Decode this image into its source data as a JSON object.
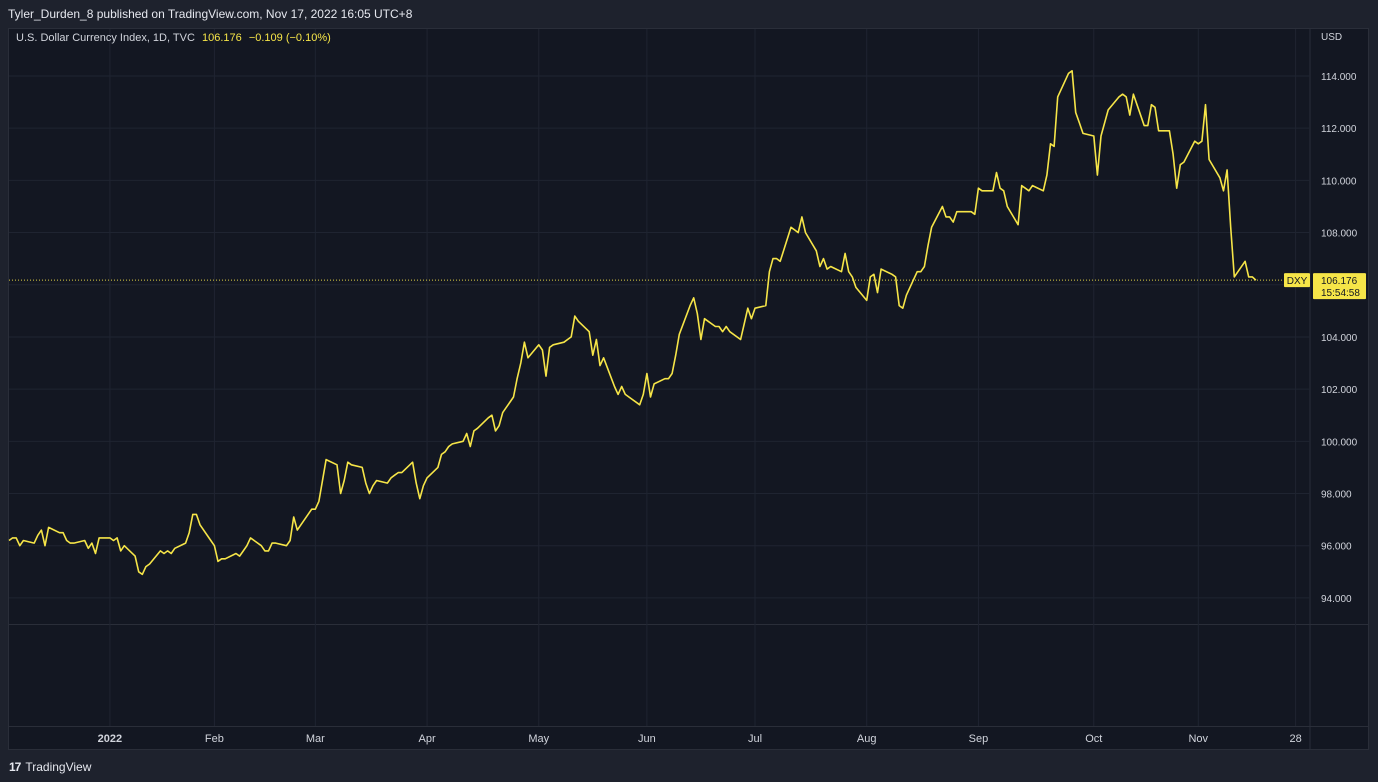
{
  "header": {
    "publish_line": "Tyler_Durden_8 published on TradingView.com, Nov 17, 2022 16:05 UTC+8"
  },
  "legend": {
    "symbol_text": "U.S. Dollar Currency Index, 1D, TVC",
    "last": "106.176",
    "change": "−0.109 (−0.10%)"
  },
  "footer": {
    "brand": "TradingView",
    "logo_glyph": "17"
  },
  "colors": {
    "line": "#f6e548",
    "grid": "#1f2431",
    "axis_text": "#d1d4dc",
    "tag_bg": "#f6e548",
    "tag_text": "#131722"
  },
  "chart_data": {
    "type": "line",
    "currency_label": "USD",
    "ylim": [
      93.0,
      115.8
    ],
    "y_ticks": [
      "94.000",
      "96.000",
      "98.000",
      "100.000",
      "102.000",
      "104.000",
      "106.000",
      "108.000",
      "110.000",
      "112.000",
      "114.000"
    ],
    "x_ticks": [
      {
        "label": "2022",
        "date": "2022-01-03",
        "bold": true
      },
      {
        "label": "Feb",
        "date": "2022-02-01"
      },
      {
        "label": "Mar",
        "date": "2022-03-01"
      },
      {
        "label": "Apr",
        "date": "2022-04-01"
      },
      {
        "label": "May",
        "date": "2022-05-02"
      },
      {
        "label": "Jun",
        "date": "2022-06-01"
      },
      {
        "label": "Jul",
        "date": "2022-07-01"
      },
      {
        "label": "Aug",
        "date": "2022-08-01"
      },
      {
        "label": "Sep",
        "date": "2022-09-01"
      },
      {
        "label": "Oct",
        "date": "2022-10-03"
      },
      {
        "label": "Nov",
        "date": "2022-11-01"
      },
      {
        "label": "28",
        "date": "2022-11-28"
      }
    ],
    "xlim": [
      "2021-12-06",
      "2022-12-02"
    ],
    "last_value": 106.176,
    "last_tag": {
      "symbol": "DXY",
      "value": "106.176",
      "countdown": "15:54:58"
    },
    "series": [
      {
        "points": [
          [
            "2021-12-06",
            96.2
          ],
          [
            "2021-12-07",
            96.3
          ],
          [
            "2021-12-08",
            96.3
          ],
          [
            "2021-12-09",
            96.0
          ],
          [
            "2021-12-10",
            96.2
          ],
          [
            "2021-12-13",
            96.1
          ],
          [
            "2021-12-14",
            96.4
          ],
          [
            "2021-12-15",
            96.6
          ],
          [
            "2021-12-16",
            96.0
          ],
          [
            "2021-12-17",
            96.7
          ],
          [
            "2021-12-20",
            96.5
          ],
          [
            "2021-12-21",
            96.5
          ],
          [
            "2021-12-22",
            96.2
          ],
          [
            "2021-12-23",
            96.1
          ],
          [
            "2021-12-24",
            96.1
          ],
          [
            "2021-12-27",
            96.2
          ],
          [
            "2021-12-28",
            95.9
          ],
          [
            "2021-12-29",
            96.1
          ],
          [
            "2021-12-30",
            95.7
          ],
          [
            "2021-12-31",
            96.3
          ],
          [
            "2022-01-03",
            96.3
          ],
          [
            "2022-01-04",
            96.2
          ],
          [
            "2022-01-05",
            96.3
          ],
          [
            "2022-01-06",
            95.8
          ],
          [
            "2022-01-07",
            96.0
          ],
          [
            "2022-01-10",
            95.6
          ],
          [
            "2022-01-11",
            95.0
          ],
          [
            "2022-01-12",
            94.9
          ],
          [
            "2022-01-13",
            95.2
          ],
          [
            "2022-01-14",
            95.3
          ],
          [
            "2022-01-17",
            95.8
          ],
          [
            "2022-01-18",
            95.7
          ],
          [
            "2022-01-19",
            95.8
          ],
          [
            "2022-01-20",
            95.7
          ],
          [
            "2022-01-21",
            95.9
          ],
          [
            "2022-01-24",
            96.1
          ],
          [
            "2022-01-25",
            96.5
          ],
          [
            "2022-01-26",
            97.2
          ],
          [
            "2022-01-27",
            97.2
          ],
          [
            "2022-01-28",
            96.8
          ],
          [
            "2022-01-31",
            96.2
          ],
          [
            "2022-02-01",
            96.0
          ],
          [
            "2022-02-02",
            95.4
          ],
          [
            "2022-02-03",
            95.5
          ],
          [
            "2022-02-04",
            95.5
          ],
          [
            "2022-02-07",
            95.7
          ],
          [
            "2022-02-08",
            95.6
          ],
          [
            "2022-02-09",
            95.8
          ],
          [
            "2022-02-10",
            96.0
          ],
          [
            "2022-02-11",
            96.3
          ],
          [
            "2022-02-14",
            96.0
          ],
          [
            "2022-02-15",
            95.8
          ],
          [
            "2022-02-16",
            95.8
          ],
          [
            "2022-02-17",
            96.1
          ],
          [
            "2022-02-18",
            96.1
          ],
          [
            "2022-02-21",
            96.0
          ],
          [
            "2022-02-22",
            96.2
          ],
          [
            "2022-02-23",
            97.1
          ],
          [
            "2022-02-24",
            96.6
          ],
          [
            "2022-02-25",
            96.8
          ],
          [
            "2022-02-28",
            97.4
          ],
          [
            "2022-03-01",
            97.4
          ],
          [
            "2022-03-02",
            97.7
          ],
          [
            "2022-03-03",
            98.5
          ],
          [
            "2022-03-04",
            99.3
          ],
          [
            "2022-03-07",
            99.1
          ],
          [
            "2022-03-08",
            98.0
          ],
          [
            "2022-03-09",
            98.5
          ],
          [
            "2022-03-10",
            99.2
          ],
          [
            "2022-03-11",
            99.1
          ],
          [
            "2022-03-14",
            99.0
          ],
          [
            "2022-03-15",
            98.4
          ],
          [
            "2022-03-16",
            98.0
          ],
          [
            "2022-03-17",
            98.3
          ],
          [
            "2022-03-18",
            98.5
          ],
          [
            "2022-03-21",
            98.4
          ],
          [
            "2022-03-22",
            98.6
          ],
          [
            "2022-03-23",
            98.7
          ],
          [
            "2022-03-24",
            98.8
          ],
          [
            "2022-03-25",
            98.8
          ],
          [
            "2022-03-28",
            99.2
          ],
          [
            "2022-03-29",
            98.4
          ],
          [
            "2022-03-30",
            97.8
          ],
          [
            "2022-03-31",
            98.3
          ],
          [
            "2022-04-01",
            98.6
          ],
          [
            "2022-04-04",
            99.0
          ],
          [
            "2022-04-05",
            99.5
          ],
          [
            "2022-04-06",
            99.6
          ],
          [
            "2022-04-07",
            99.8
          ],
          [
            "2022-04-08",
            99.9
          ],
          [
            "2022-04-11",
            100.0
          ],
          [
            "2022-04-12",
            100.3
          ],
          [
            "2022-04-13",
            99.8
          ],
          [
            "2022-04-14",
            100.4
          ],
          [
            "2022-04-15",
            100.5
          ],
          [
            "2022-04-18",
            100.9
          ],
          [
            "2022-04-19",
            101.0
          ],
          [
            "2022-04-20",
            100.4
          ],
          [
            "2022-04-21",
            100.6
          ],
          [
            "2022-04-22",
            101.1
          ],
          [
            "2022-04-25",
            101.7
          ],
          [
            "2022-04-26",
            102.4
          ],
          [
            "2022-04-27",
            103.0
          ],
          [
            "2022-04-28",
            103.8
          ],
          [
            "2022-04-29",
            103.2
          ],
          [
            "2022-05-02",
            103.7
          ],
          [
            "2022-05-03",
            103.5
          ],
          [
            "2022-05-04",
            102.5
          ],
          [
            "2022-05-05",
            103.6
          ],
          [
            "2022-05-06",
            103.7
          ],
          [
            "2022-05-09",
            103.8
          ],
          [
            "2022-05-10",
            103.9
          ],
          [
            "2022-05-11",
            104.0
          ],
          [
            "2022-05-12",
            104.8
          ],
          [
            "2022-05-13",
            104.6
          ],
          [
            "2022-05-16",
            104.2
          ],
          [
            "2022-05-17",
            103.3
          ],
          [
            "2022-05-18",
            103.9
          ],
          [
            "2022-05-19",
            102.9
          ],
          [
            "2022-05-20",
            103.2
          ],
          [
            "2022-05-23",
            102.1
          ],
          [
            "2022-05-24",
            101.8
          ],
          [
            "2022-05-25",
            102.1
          ],
          [
            "2022-05-26",
            101.8
          ],
          [
            "2022-05-27",
            101.7
          ],
          [
            "2022-05-30",
            101.4
          ],
          [
            "2022-05-31",
            101.8
          ],
          [
            "2022-06-01",
            102.6
          ],
          [
            "2022-06-02",
            101.7
          ],
          [
            "2022-06-03",
            102.2
          ],
          [
            "2022-06-06",
            102.4
          ],
          [
            "2022-06-07",
            102.4
          ],
          [
            "2022-06-08",
            102.6
          ],
          [
            "2022-06-09",
            103.3
          ],
          [
            "2022-06-10",
            104.1
          ],
          [
            "2022-06-13",
            105.2
          ],
          [
            "2022-06-14",
            105.5
          ],
          [
            "2022-06-15",
            104.9
          ],
          [
            "2022-06-16",
            103.9
          ],
          [
            "2022-06-17",
            104.7
          ],
          [
            "2022-06-20",
            104.4
          ],
          [
            "2022-06-21",
            104.4
          ],
          [
            "2022-06-22",
            104.2
          ],
          [
            "2022-06-23",
            104.4
          ],
          [
            "2022-06-24",
            104.2
          ],
          [
            "2022-06-27",
            103.9
          ],
          [
            "2022-06-28",
            104.5
          ],
          [
            "2022-06-29",
            105.1
          ],
          [
            "2022-06-30",
            104.7
          ],
          [
            "2022-07-01",
            105.1
          ],
          [
            "2022-07-04",
            105.2
          ],
          [
            "2022-07-05",
            106.5
          ],
          [
            "2022-07-06",
            107.0
          ],
          [
            "2022-07-07",
            107.0
          ],
          [
            "2022-07-08",
            106.9
          ],
          [
            "2022-07-11",
            108.2
          ],
          [
            "2022-07-12",
            108.1
          ],
          [
            "2022-07-13",
            108.0
          ],
          [
            "2022-07-14",
            108.6
          ],
          [
            "2022-07-15",
            108.0
          ],
          [
            "2022-07-18",
            107.3
          ],
          [
            "2022-07-19",
            106.7
          ],
          [
            "2022-07-20",
            107.0
          ],
          [
            "2022-07-21",
            106.6
          ],
          [
            "2022-07-22",
            106.7
          ],
          [
            "2022-07-25",
            106.5
          ],
          [
            "2022-07-26",
            107.2
          ],
          [
            "2022-07-27",
            106.5
          ],
          [
            "2022-07-28",
            106.3
          ],
          [
            "2022-07-29",
            105.9
          ],
          [
            "2022-08-01",
            105.4
          ],
          [
            "2022-08-02",
            106.3
          ],
          [
            "2022-08-03",
            106.4
          ],
          [
            "2022-08-04",
            105.7
          ],
          [
            "2022-08-05",
            106.6
          ],
          [
            "2022-08-08",
            106.4
          ],
          [
            "2022-08-09",
            106.3
          ],
          [
            "2022-08-10",
            105.2
          ],
          [
            "2022-08-11",
            105.1
          ],
          [
            "2022-08-12",
            105.6
          ],
          [
            "2022-08-15",
            106.5
          ],
          [
            "2022-08-16",
            106.5
          ],
          [
            "2022-08-17",
            106.7
          ],
          [
            "2022-08-18",
            107.5
          ],
          [
            "2022-08-19",
            108.2
          ],
          [
            "2022-08-22",
            109.0
          ],
          [
            "2022-08-23",
            108.6
          ],
          [
            "2022-08-24",
            108.6
          ],
          [
            "2022-08-25",
            108.4
          ],
          [
            "2022-08-26",
            108.8
          ],
          [
            "2022-08-29",
            108.8
          ],
          [
            "2022-08-30",
            108.8
          ],
          [
            "2022-08-31",
            108.7
          ],
          [
            "2022-09-01",
            109.7
          ],
          [
            "2022-09-02",
            109.6
          ],
          [
            "2022-09-05",
            109.6
          ],
          [
            "2022-09-06",
            110.3
          ],
          [
            "2022-09-07",
            109.7
          ],
          [
            "2022-09-08",
            109.6
          ],
          [
            "2022-09-09",
            109.0
          ],
          [
            "2022-09-12",
            108.3
          ],
          [
            "2022-09-13",
            109.8
          ],
          [
            "2022-09-14",
            109.7
          ],
          [
            "2022-09-15",
            109.6
          ],
          [
            "2022-09-16",
            109.8
          ],
          [
            "2022-09-19",
            109.6
          ],
          [
            "2022-09-20",
            110.2
          ],
          [
            "2022-09-21",
            111.4
          ],
          [
            "2022-09-22",
            111.3
          ],
          [
            "2022-09-23",
            113.2
          ],
          [
            "2022-09-26",
            114.1
          ],
          [
            "2022-09-27",
            114.2
          ],
          [
            "2022-09-28",
            112.6
          ],
          [
            "2022-09-29",
            112.2
          ],
          [
            "2022-09-30",
            111.8
          ],
          [
            "2022-10-03",
            111.7
          ],
          [
            "2022-10-04",
            110.2
          ],
          [
            "2022-10-05",
            111.7
          ],
          [
            "2022-10-06",
            112.2
          ],
          [
            "2022-10-07",
            112.7
          ],
          [
            "2022-10-10",
            113.2
          ],
          [
            "2022-10-11",
            113.3
          ],
          [
            "2022-10-12",
            113.2
          ],
          [
            "2022-10-13",
            112.5
          ],
          [
            "2022-10-14",
            113.3
          ],
          [
            "2022-10-17",
            112.1
          ],
          [
            "2022-10-18",
            112.1
          ],
          [
            "2022-10-19",
            112.9
          ],
          [
            "2022-10-20",
            112.8
          ],
          [
            "2022-10-21",
            111.9
          ],
          [
            "2022-10-24",
            111.9
          ],
          [
            "2022-10-25",
            111.0
          ],
          [
            "2022-10-26",
            109.7
          ],
          [
            "2022-10-27",
            110.6
          ],
          [
            "2022-10-28",
            110.7
          ],
          [
            "2022-10-31",
            111.5
          ],
          [
            "2022-11-01",
            111.4
          ],
          [
            "2022-11-02",
            111.5
          ],
          [
            "2022-11-03",
            112.9
          ],
          [
            "2022-11-04",
            110.8
          ],
          [
            "2022-11-07",
            110.1
          ],
          [
            "2022-11-08",
            109.6
          ],
          [
            "2022-11-09",
            110.4
          ],
          [
            "2022-11-10",
            108.2
          ],
          [
            "2022-11-11",
            106.3
          ],
          [
            "2022-11-14",
            106.9
          ],
          [
            "2022-11-15",
            106.3
          ],
          [
            "2022-11-16",
            106.3
          ],
          [
            "2022-11-17",
            106.176
          ]
        ]
      }
    ]
  }
}
